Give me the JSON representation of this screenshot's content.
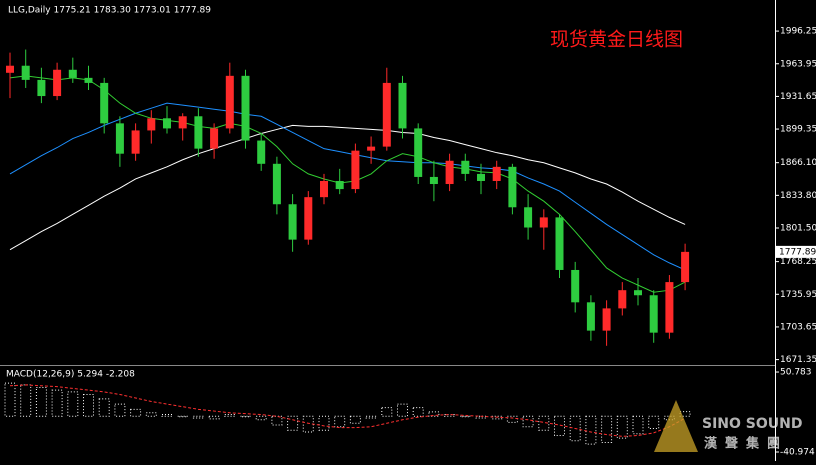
{
  "chart_data": [
    {
      "type": "candlestick",
      "title": "现货黄金日线图",
      "header": "LLG,Daily  1775.21 1783.30 1773.01 1777.89",
      "up_color": "#ff2a2a",
      "down_color": "#2ecc40",
      "open": [
        1955,
        1962,
        1948,
        1932,
        1958,
        1950,
        1945,
        1905,
        1875,
        1898,
        1910,
        1900,
        1912,
        1880,
        1900,
        1952,
        1888,
        1865,
        1825,
        1790,
        1832,
        1848,
        1840,
        1878,
        1882,
        1945,
        1900,
        1852,
        1845,
        1868,
        1855,
        1848,
        1862,
        1822,
        1802,
        1812,
        1760,
        1728,
        1700,
        1722,
        1740,
        1735,
        1698,
        1748
      ],
      "high": [
        1975,
        1978,
        1960,
        1965,
        1970,
        1962,
        1950,
        1912,
        1905,
        1918,
        1922,
        1915,
        1920,
        1905,
        1965,
        1958,
        1895,
        1872,
        1835,
        1838,
        1855,
        1860,
        1885,
        1892,
        1960,
        1952,
        1905,
        1868,
        1875,
        1875,
        1865,
        1868,
        1865,
        1835,
        1820,
        1815,
        1768,
        1735,
        1730,
        1748,
        1752,
        1740,
        1755,
        1786
      ],
      "low": [
        1930,
        1940,
        1925,
        1928,
        1945,
        1938,
        1895,
        1862,
        1868,
        1885,
        1895,
        1888,
        1872,
        1870,
        1895,
        1880,
        1858,
        1815,
        1778,
        1785,
        1825,
        1835,
        1836,
        1865,
        1878,
        1890,
        1845,
        1828,
        1838,
        1848,
        1835,
        1840,
        1815,
        1790,
        1780,
        1752,
        1718,
        1690,
        1685,
        1715,
        1725,
        1688,
        1692,
        1740
      ],
      "close": [
        1962,
        1948,
        1932,
        1958,
        1950,
        1945,
        1905,
        1875,
        1898,
        1910,
        1900,
        1912,
        1880,
        1900,
        1952,
        1888,
        1865,
        1825,
        1790,
        1832,
        1848,
        1840,
        1878,
        1882,
        1945,
        1900,
        1852,
        1845,
        1868,
        1855,
        1848,
        1862,
        1822,
        1802,
        1812,
        1760,
        1728,
        1700,
        1722,
        1740,
        1735,
        1698,
        1748,
        1777.89
      ],
      "series": [
        {
          "color": "#ffffff",
          "values": [
            1780,
            1789,
            1798,
            1806,
            1815,
            1824,
            1833,
            1841,
            1850,
            1856,
            1862,
            1869,
            1875,
            1880,
            1885,
            1890,
            1895,
            1899,
            1903,
            1902,
            1902,
            1901,
            1900,
            1899,
            1898,
            1896,
            1895,
            1891,
            1888,
            1884,
            1880,
            1876,
            1873,
            1869,
            1866,
            1861,
            1856,
            1850,
            1845,
            1837,
            1828,
            1820,
            1812,
            1805
          ]
        },
        {
          "color": "#1e90ff",
          "values": [
            1855,
            1864,
            1873,
            1881,
            1890,
            1896,
            1903,
            1909,
            1915,
            1920,
            1925,
            1923,
            1921,
            1919,
            1917,
            1914,
            1912,
            1904,
            1896,
            1888,
            1880,
            1877,
            1874,
            1871,
            1868,
            1867,
            1866,
            1866,
            1865,
            1863,
            1861,
            1860,
            1858,
            1851,
            1845,
            1838,
            1827,
            1816,
            1805,
            1795,
            1785,
            1775,
            1767,
            1760
          ]
        },
        {
          "color": "#32cd32",
          "values": [
            1950,
            1952,
            1950,
            1948,
            1950,
            1948,
            1938,
            1925,
            1915,
            1910,
            1908,
            1906,
            1902,
            1900,
            1905,
            1902,
            1895,
            1882,
            1865,
            1855,
            1850,
            1846,
            1848,
            1855,
            1868,
            1875,
            1872,
            1866,
            1862,
            1860,
            1857,
            1856,
            1850,
            1838,
            1828,
            1815,
            1798,
            1780,
            1762,
            1752,
            1745,
            1738,
            1740,
            1748
          ]
        }
      ],
      "last_price": 1777.89,
      "ylim": [
        1667,
        2027
      ],
      "yticks": [
        1996.25,
        1963.95,
        1931.65,
        1899.35,
        {
          "value": 1866.1,
          "label": "1866.10"
        },
        {
          "value": 1833.8,
          "label": "1833.80"
        },
        {
          "value": 1801.5,
          "label": "1801.50"
        },
        1768.25,
        1735.95,
        1703.65,
        1671.35
      ]
    },
    {
      "type": "macd",
      "title": "MACD(12,26,9) 5.294 -2.208",
      "hist_color": "#ffffff",
      "signal_color": "#ff3030",
      "values": [
        38,
        36,
        33,
        30,
        28,
        25,
        20,
        14,
        8,
        4,
        2,
        0,
        -2,
        -3,
        2,
        0,
        -4,
        -10,
        -16,
        -18,
        -16,
        -12,
        -8,
        -2,
        10,
        14,
        10,
        5,
        2,
        0,
        -2,
        -3,
        -7,
        -12,
        -16,
        -22,
        -28,
        -32,
        -30,
        -25,
        -20,
        -14,
        -4,
        5.294
      ],
      "signal": [
        35,
        36,
        35,
        34,
        32,
        30,
        28,
        25,
        21,
        17,
        14,
        11,
        8,
        6,
        4,
        3,
        2,
        0,
        -4,
        -8,
        -11,
        -13,
        -13,
        -12,
        -8,
        -4,
        -1,
        1,
        2,
        1,
        0,
        -1,
        -2,
        -4,
        -7,
        -10,
        -14,
        -18,
        -21,
        -23,
        -22,
        -19,
        -12,
        -2.208
      ],
      "ylim": [
        -49,
        57.7
      ],
      "yticks": [
        50.783,
        -40.974
      ]
    }
  ],
  "watermark": {
    "brand": "SINO SOUND",
    "brand_zh": "漢聲集團"
  }
}
